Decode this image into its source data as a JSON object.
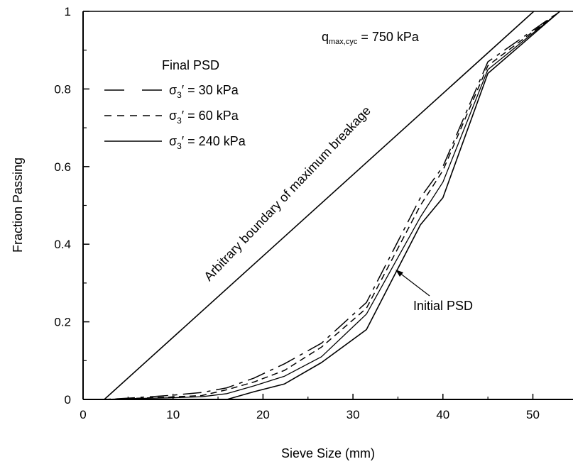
{
  "chart_data": {
    "type": "line",
    "title": "",
    "xlabel": "Sieve Size (mm)",
    "ylabel": "Fraction Passing",
    "xlim": [
      0,
      55
    ],
    "ylim": [
      0,
      1
    ],
    "x_ticks": [
      0,
      10,
      20,
      30,
      40,
      50
    ],
    "y_ticks": [
      0,
      0.2,
      0.4,
      0.6,
      0.8,
      1
    ],
    "x_tick_labels": [
      "0",
      "10",
      "20",
      "30",
      "40",
      "50"
    ],
    "y_tick_labels": [
      "0",
      "0.2",
      "0.4",
      "0.6",
      "0.8",
      "1"
    ],
    "grid": false,
    "legend": {
      "title": "Final PSD",
      "position": "top-left",
      "entries": [
        {
          "sym": "σ",
          "sub": "3",
          "rest": "′ = 30 kPa",
          "style": "long-dash"
        },
        {
          "sym": "σ",
          "sub": "3",
          "rest": "′ = 60 kPa",
          "style": "short-dash"
        },
        {
          "sym": "σ",
          "sub": "3",
          "rest": "′ = 240 kPa",
          "style": "solid"
        }
      ]
    },
    "annotations": {
      "q_main": "q",
      "q_sub": "max,cyc",
      "q_rest": " = 750 kPa",
      "boundary_label": "Arbitrary boundary of maximum breakage",
      "initial_label": "Initial PSD"
    },
    "series": [
      {
        "style": "long-dash",
        "x": [
          0,
          2.36,
          4.75,
          9.5,
          13.2,
          16,
          19,
          22.4,
          26.5,
          31.5,
          37.5,
          40,
          45,
          53
        ],
        "y": [
          0,
          0,
          0.003,
          0.01,
          0.018,
          0.03,
          0.055,
          0.092,
          0.145,
          0.25,
          0.52,
          0.6,
          0.87,
          1.0
        ]
      },
      {
        "style": "short-dash",
        "x": [
          0,
          2.36,
          4.75,
          9.5,
          13.2,
          16,
          19,
          22.4,
          26.5,
          31.5,
          37.5,
          40,
          45,
          53
        ],
        "y": [
          0,
          0,
          0.002,
          0.006,
          0.01,
          0.025,
          0.045,
          0.075,
          0.135,
          0.235,
          0.5,
          0.59,
          0.86,
          1.0
        ]
      },
      {
        "style": "solid-thin",
        "x": [
          0,
          2.36,
          4.75,
          9.5,
          13.2,
          16,
          19,
          22.4,
          26.5,
          31.5,
          37.5,
          40,
          45,
          53
        ],
        "y": [
          0,
          0,
          0.002,
          0.004,
          0.007,
          0.015,
          0.035,
          0.06,
          0.11,
          0.22,
          0.47,
          0.56,
          0.85,
          1.0
        ]
      },
      {
        "style": "solid",
        "x": [
          0,
          2.36,
          9.5,
          13.2,
          16,
          19,
          22.4,
          26.5,
          31.5,
          37.5,
          40,
          45,
          53
        ],
        "y": [
          0,
          0,
          0,
          0,
          0,
          0.02,
          0.04,
          0.095,
          0.18,
          0.45,
          0.52,
          0.84,
          1.0
        ]
      },
      {
        "style": "solid",
        "x": [
          2.36,
          50.1
        ],
        "y": [
          0,
          1.0
        ]
      }
    ]
  }
}
